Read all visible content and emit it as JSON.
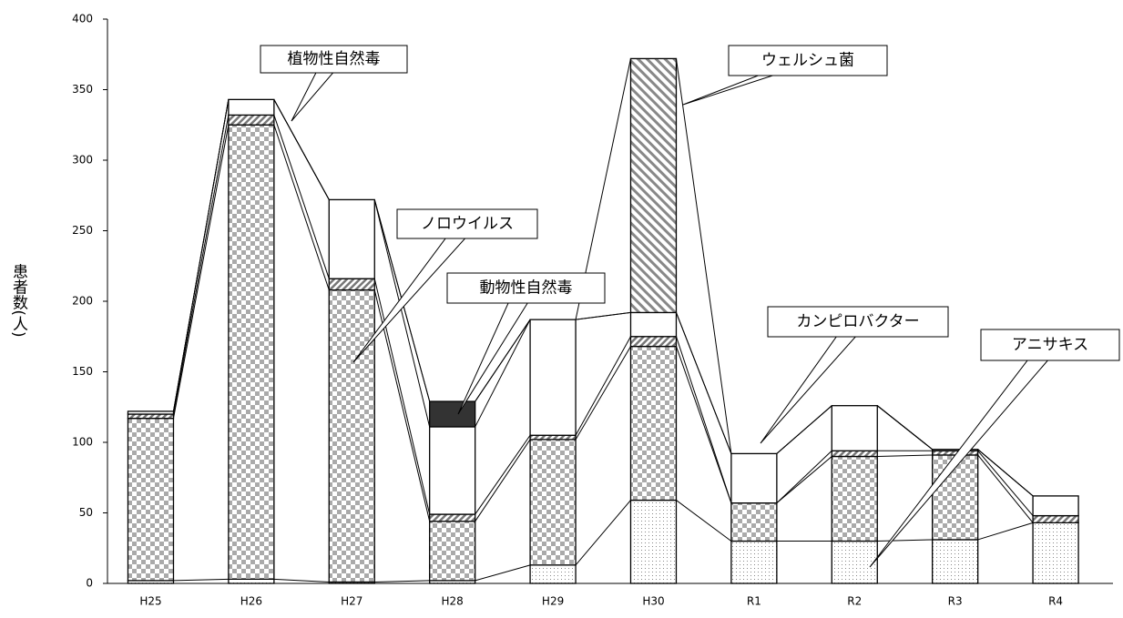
{
  "chart_data": {
    "type": "bar",
    "stacked": true,
    "y_label": "患者数(人)",
    "categories": [
      "H25",
      "H26",
      "H27",
      "H28",
      "H29",
      "H30",
      "R1",
      "R2",
      "R3",
      "R4"
    ],
    "ylim": [
      0,
      400
    ],
    "yticks": [
      0,
      50,
      100,
      150,
      200,
      250,
      300,
      350,
      400
    ],
    "series": [
      {
        "name": "アニサキス",
        "color": "#ffffff",
        "values": [
          2,
          3,
          1,
          2,
          13,
          59,
          30,
          30,
          31,
          43
        ]
      },
      {
        "name": "ノロウイルス",
        "color": "#b0b0b0",
        "values": [
          115,
          322,
          207,
          42,
          89,
          109,
          27,
          60,
          60,
          0
        ]
      },
      {
        "name": "植物性自然毒",
        "color": "#808080",
        "values": [
          3,
          7,
          8,
          5,
          3,
          7,
          0,
          4,
          3,
          5
        ]
      },
      {
        "name": "カンピロバクター",
        "color": "#ffffff",
        "values": [
          2,
          11,
          56,
          62,
          82,
          17,
          35,
          32,
          1,
          14
        ]
      },
      {
        "name": "動物性自然毒",
        "color": "#333333",
        "values": [
          0,
          0,
          0,
          18,
          0,
          0,
          0,
          0,
          0,
          0
        ]
      },
      {
        "name": "ウェルシュ菌",
        "color": "#808080",
        "values": [
          0,
          0,
          0,
          0,
          0,
          180,
          0,
          0,
          0,
          0
        ]
      }
    ]
  }
}
